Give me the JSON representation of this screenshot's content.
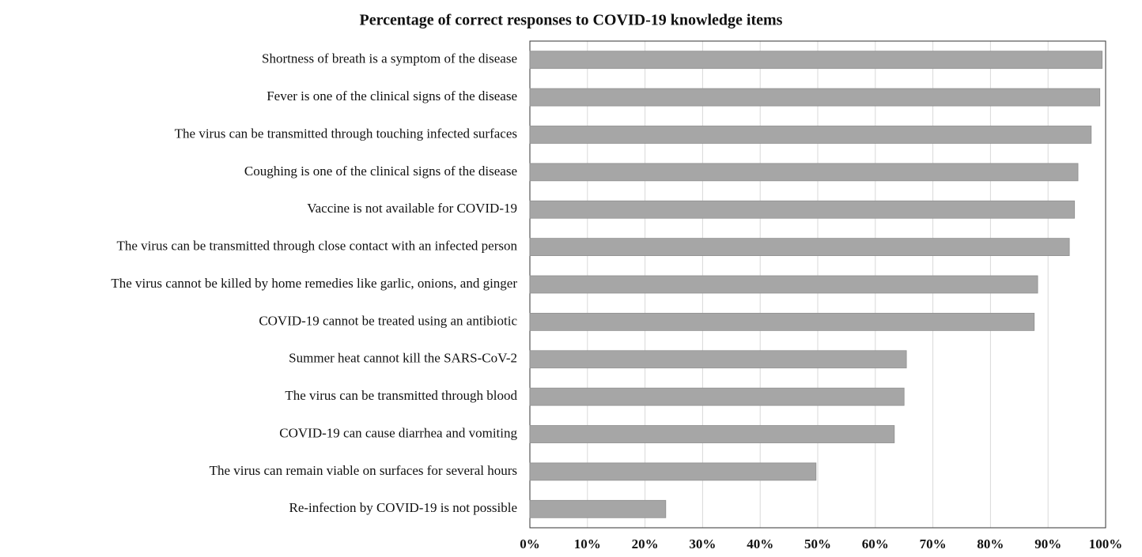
{
  "chart_data": {
    "type": "barh",
    "title": "Percentage of correct responses to COVID-19 knowledge items",
    "categories": [
      "Shortness of breath is a symptom of the disease",
      "Fever is one of the clinical signs of the disease",
      "The virus can be transmitted through touching infected surfaces",
      "Coughing is one of the clinical signs of the disease",
      "Vaccine is not available for COVID-19",
      "The virus can be transmitted through close contact with an infected person",
      "The virus cannot be killed by home remedies like garlic, onions, and ginger",
      "COVID-19 cannot be treated using an antibiotic",
      "Summer heat cannot kill the SARS-CoV-2",
      "The virus can be transmitted through blood",
      "COVID-19 can cause diarrhea and vomiting",
      "The virus can remain viable on surfaces for several hours",
      "Re-infection by COVID-19 is not possible"
    ],
    "values": [
      99.4,
      99.0,
      97.5,
      95.2,
      94.6,
      93.7,
      88.2,
      87.6,
      65.4,
      65.0,
      63.3,
      49.7,
      23.6
    ],
    "color": "#a6a6a6",
    "xlim": [
      0,
      100
    ],
    "xticks": [
      {
        "value": 0,
        "label": "0%"
      },
      {
        "value": 10,
        "label": "10%"
      },
      {
        "value": 20,
        "label": "20%"
      },
      {
        "value": 30,
        "label": "30%"
      },
      {
        "value": 40,
        "label": "40%"
      },
      {
        "value": 50,
        "label": "50%"
      },
      {
        "value": 60,
        "label": "60%"
      },
      {
        "value": 70,
        "label": "70%"
      },
      {
        "value": 80,
        "label": "80%"
      },
      {
        "value": 90,
        "label": "90%"
      },
      {
        "value": 100,
        "label": "100%"
      }
    ],
    "grid": true
  }
}
